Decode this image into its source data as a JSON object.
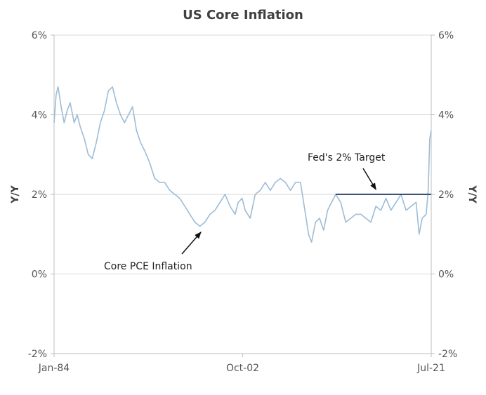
{
  "chart_data": {
    "type": "line",
    "title": "US Core Inflation",
    "ylabel_left": "Y/Y",
    "ylabel_right": "Y/Y",
    "xlabel": "",
    "x_tick_labels": [
      "Jan-84",
      "Oct-02",
      "Jul-21"
    ],
    "x_range": [
      1984.0,
      2021.5
    ],
    "y_tick_labels": [
      "6%",
      "4%",
      "2%",
      "0%",
      "-2%"
    ],
    "ylim": [
      -2,
      6
    ],
    "grid": "horizontal",
    "series": [
      {
        "name": "Core PCE Inflation",
        "color": "#9dbcd6",
        "x": [
          1984.0,
          1984.2,
          1984.4,
          1984.7,
          1985.0,
          1985.3,
          1985.6,
          1986.0,
          1986.3,
          1986.6,
          1987.0,
          1987.4,
          1987.8,
          1988.2,
          1988.6,
          1989.0,
          1989.4,
          1989.8,
          1990.2,
          1990.6,
          1991.0,
          1991.4,
          1991.8,
          1992.2,
          1992.6,
          1993.0,
          1993.5,
          1994.0,
          1994.5,
          1995.0,
          1995.5,
          1996.0,
          1996.5,
          1997.0,
          1997.5,
          1998.0,
          1998.5,
          1999.0,
          1999.5,
          2000.0,
          2000.5,
          2001.0,
          2001.5,
          2002.0,
          2002.3,
          2002.7,
          2003.0,
          2003.5,
          2004.0,
          2004.5,
          2005.0,
          2005.5,
          2006.0,
          2006.5,
          2007.0,
          2007.5,
          2008.0,
          2008.5,
          2009.0,
          2009.3,
          2009.6,
          2010.0,
          2010.4,
          2010.8,
          2011.2,
          2011.6,
          2012.0,
          2012.5,
          2013.0,
          2013.5,
          2014.0,
          2014.5,
          2015.0,
          2015.5,
          2016.0,
          2016.5,
          2017.0,
          2017.5,
          2018.0,
          2018.5,
          2019.0,
          2019.5,
          2020.0,
          2020.3,
          2020.6,
          2021.0,
          2021.2,
          2021.35,
          2021.5
        ],
        "values": [
          3.8,
          4.5,
          4.7,
          4.2,
          3.8,
          4.1,
          4.3,
          3.8,
          4.0,
          3.7,
          3.4,
          3.0,
          2.9,
          3.3,
          3.8,
          4.1,
          4.6,
          4.7,
          4.3,
          4.0,
          3.8,
          4.0,
          4.2,
          3.6,
          3.3,
          3.1,
          2.8,
          2.4,
          2.3,
          2.3,
          2.1,
          2.0,
          1.9,
          1.7,
          1.5,
          1.3,
          1.2,
          1.3,
          1.5,
          1.6,
          1.8,
          2.0,
          1.7,
          1.5,
          1.8,
          1.9,
          1.6,
          1.4,
          2.0,
          2.1,
          2.3,
          2.1,
          2.3,
          2.4,
          2.3,
          2.1,
          2.3,
          2.3,
          1.5,
          1.0,
          0.8,
          1.3,
          1.4,
          1.1,
          1.6,
          1.8,
          2.0,
          1.8,
          1.3,
          1.4,
          1.5,
          1.5,
          1.4,
          1.3,
          1.7,
          1.6,
          1.9,
          1.6,
          1.8,
          2.0,
          1.6,
          1.7,
          1.8,
          1.0,
          1.4,
          1.5,
          2.1,
          3.4,
          3.6
        ]
      },
      {
        "name": "Fed's 2% Target",
        "color": "#1f3864",
        "x": [
          2012.0,
          2021.5
        ],
        "values": [
          2,
          2
        ]
      }
    ],
    "annotations": [
      {
        "text": "Core PCE Inflation",
        "arrow_to": [
          1998.6,
          1.05
        ]
      },
      {
        "text": "Fed's 2% Target",
        "arrow_to": [
          2016.0,
          2.05
        ]
      }
    ]
  }
}
